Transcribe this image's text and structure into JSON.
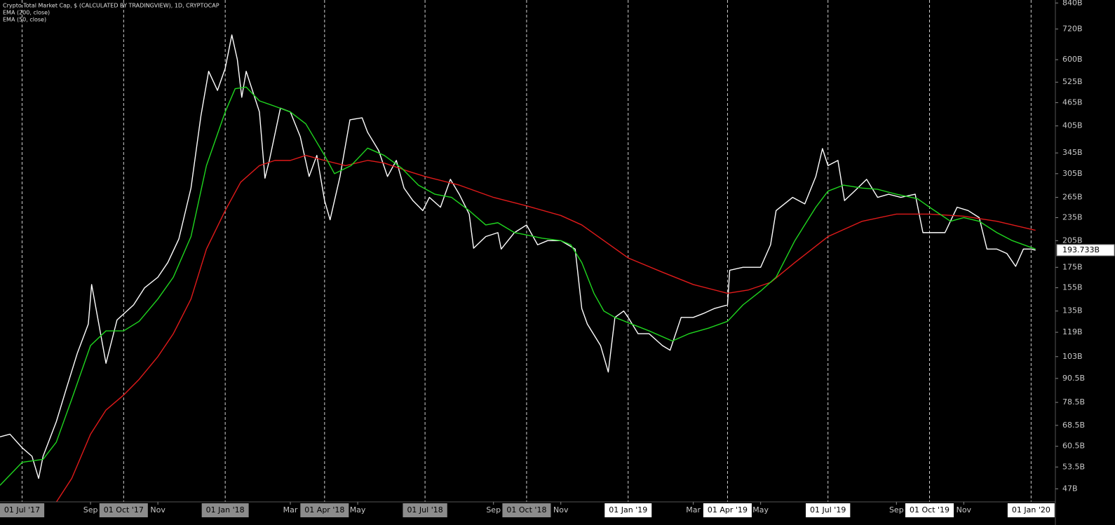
{
  "chart_data": {
    "type": "line",
    "log_scale": true,
    "background": "#000000",
    "xlim": [
      "2017-06-11",
      "2020-01-23"
    ],
    "ylim": [
      43.5,
      855
    ],
    "yticks": [
      {
        "value": 47,
        "label": "47B"
      },
      {
        "value": 53.5,
        "label": "53.5B"
      },
      {
        "value": 60.5,
        "label": "60.5B"
      },
      {
        "value": 68.5,
        "label": "68.5B"
      },
      {
        "value": 78.5,
        "label": "78.5B"
      },
      {
        "value": 90.5,
        "label": "90.5B"
      },
      {
        "value": 103,
        "label": "103B"
      },
      {
        "value": 119,
        "label": "119B"
      },
      {
        "value": 135,
        "label": "135B"
      },
      {
        "value": 155,
        "label": "155B"
      },
      {
        "value": 175,
        "label": "175B"
      },
      {
        "value": 205,
        "label": "205B"
      },
      {
        "value": 235,
        "label": "235B"
      },
      {
        "value": 265,
        "label": "265B"
      },
      {
        "value": 305,
        "label": "305B"
      },
      {
        "value": 345,
        "label": "345B"
      },
      {
        "value": 405,
        "label": "405B"
      },
      {
        "value": 465,
        "label": "465B"
      },
      {
        "value": 525,
        "label": "525B"
      },
      {
        "value": 600,
        "label": "600B"
      },
      {
        "value": 720,
        "label": "720B"
      },
      {
        "value": 840,
        "label": "840B"
      }
    ],
    "xticks": [
      {
        "value": "2017-07-01",
        "label": "01 Jul '17",
        "box": "#8c8c8c"
      },
      {
        "value": "2017-09-01",
        "label": "Sep"
      },
      {
        "value": "2017-10-01",
        "label": "01 Oct '17",
        "box": "#8c8c8c"
      },
      {
        "value": "2017-11-01",
        "label": "Nov"
      },
      {
        "value": "2018-01-01",
        "label": "01 Jan '18",
        "box": "#8c8c8c"
      },
      {
        "value": "2018-03-01",
        "label": "Mar"
      },
      {
        "value": "2018-04-01",
        "label": "01 Apr '18",
        "box": "#8c8c8c"
      },
      {
        "value": "2018-05-01",
        "label": "May"
      },
      {
        "value": "2018-07-01",
        "label": "01 Jul '18",
        "box": "#8c8c8c"
      },
      {
        "value": "2018-09-01",
        "label": "Sep"
      },
      {
        "value": "2018-10-01",
        "label": "01 Oct '18",
        "box": "#8c8c8c"
      },
      {
        "value": "2018-11-01",
        "label": "Nov"
      },
      {
        "value": "2019-01-01",
        "label": "01 Jan '19",
        "box": "#ffffff"
      },
      {
        "value": "2019-03-01",
        "label": "Mar"
      },
      {
        "value": "2019-04-01",
        "label": "01 Apr '19",
        "box": "#ffffff"
      },
      {
        "value": "2019-05-01",
        "label": "May"
      },
      {
        "value": "2019-07-01",
        "label": "01 Jul '19",
        "box": "#ffffff"
      },
      {
        "value": "2019-09-01",
        "label": "Sep"
      },
      {
        "value": "2019-10-01",
        "label": "01 Oct '19",
        "box": "#ffffff"
      },
      {
        "value": "2019-11-01",
        "label": "Nov"
      },
      {
        "value": "2020-01-01",
        "label": "01 Jan '20",
        "box": "#ffffff"
      }
    ],
    "last_label": {
      "value": 193.733,
      "label": "193.733B"
    },
    "series": [
      {
        "name": "Crypto Total Market Cap, $ (CALCULATED BY TRADINGVIEW), 1D, CRYPTOCAP",
        "color": "#ffffff",
        "x": [
          "2017-06-11",
          "2017-06-20",
          "2017-07-01",
          "2017-07-10",
          "2017-07-16",
          "2017-07-20",
          "2017-08-01",
          "2017-08-10",
          "2017-08-20",
          "2017-08-30",
          "2017-09-02",
          "2017-09-15",
          "2017-09-25",
          "2017-10-10",
          "2017-10-20",
          "2017-11-01",
          "2017-11-10",
          "2017-11-20",
          "2017-12-01",
          "2017-12-10",
          "2017-12-17",
          "2017-12-25",
          "2018-01-01",
          "2018-01-07",
          "2018-01-12",
          "2018-01-16",
          "2018-01-20",
          "2018-02-01",
          "2018-02-06",
          "2018-02-10",
          "2018-02-20",
          "2018-03-01",
          "2018-03-10",
          "2018-03-18",
          "2018-03-25",
          "2018-04-01",
          "2018-04-06",
          "2018-04-15",
          "2018-04-24",
          "2018-05-05",
          "2018-05-10",
          "2018-05-20",
          "2018-05-28",
          "2018-06-05",
          "2018-06-12",
          "2018-06-20",
          "2018-06-29",
          "2018-07-05",
          "2018-07-15",
          "2018-07-24",
          "2018-08-01",
          "2018-08-10",
          "2018-08-14",
          "2018-08-25",
          "2018-09-05",
          "2018-09-08",
          "2018-09-20",
          "2018-10-01",
          "2018-10-11",
          "2018-10-20",
          "2018-11-01",
          "2018-11-14",
          "2018-11-20",
          "2018-11-25",
          "2018-12-07",
          "2018-12-14",
          "2018-12-20",
          "2018-12-28",
          "2019-01-01",
          "2019-01-10",
          "2019-01-20",
          "2019-02-01",
          "2019-02-08",
          "2019-02-18",
          "2019-03-01",
          "2019-03-10",
          "2019-03-20",
          "2019-04-01",
          "2019-04-03",
          "2019-04-15",
          "2019-05-01",
          "2019-05-10",
          "2019-05-15",
          "2019-05-30",
          "2019-06-10",
          "2019-06-20",
          "2019-06-26",
          "2019-07-01",
          "2019-07-10",
          "2019-07-16",
          "2019-07-25",
          "2019-08-05",
          "2019-08-15",
          "2019-08-25",
          "2019-09-05",
          "2019-09-18",
          "2019-09-25",
          "2019-10-01",
          "2019-10-15",
          "2019-10-26",
          "2019-11-05",
          "2019-11-15",
          "2019-11-22",
          "2019-12-01",
          "2019-12-10",
          "2019-12-18",
          "2019-12-25",
          "2020-01-01",
          "2020-01-05"
        ],
        "values": [
          64,
          65,
          60,
          57,
          50,
          57,
          70,
          85,
          105,
          125,
          158,
          99,
          128,
          140,
          155,
          165,
          180,
          207,
          280,
          430,
          560,
          500,
          570,
          695,
          600,
          480,
          560,
          440,
          297,
          330,
          450,
          440,
          380,
          300,
          340,
          260,
          232,
          300,
          420,
          425,
          390,
          350,
          300,
          330,
          280,
          260,
          245,
          265,
          250,
          295,
          270,
          240,
          196,
          210,
          215,
          195,
          215,
          225,
          200,
          205,
          205,
          195,
          137,
          125,
          110,
          94,
          130,
          135,
          130,
          118,
          118,
          110,
          107,
          130,
          130,
          133,
          137,
          140,
          172,
          175,
          175,
          200,
          245,
          265,
          255,
          300,
          354,
          320,
          330,
          260,
          275,
          295,
          265,
          270,
          265,
          270,
          215,
          215,
          215,
          250,
          245,
          235,
          195,
          195,
          190,
          176,
          195,
          195,
          193.733
        ]
      },
      {
        "name": "EMA (200, close)",
        "color": "#e01a1a",
        "x": [
          "2017-07-31",
          "2017-08-15",
          "2017-09-01",
          "2017-09-15",
          "2017-10-01",
          "2017-10-15",
          "2017-11-01",
          "2017-11-15",
          "2017-12-01",
          "2017-12-15",
          "2018-01-01",
          "2018-01-15",
          "2018-02-01",
          "2018-02-15",
          "2018-03-01",
          "2018-03-15",
          "2018-04-01",
          "2018-04-20",
          "2018-05-10",
          "2018-05-25",
          "2018-06-15",
          "2018-07-01",
          "2018-08-01",
          "2018-09-01",
          "2018-10-01",
          "2018-11-01",
          "2018-11-20",
          "2018-12-10",
          "2019-01-01",
          "2019-02-01",
          "2019-03-01",
          "2019-04-01",
          "2019-04-20",
          "2019-05-10",
          "2019-06-01",
          "2019-07-01",
          "2019-08-01",
          "2019-09-01",
          "2019-10-01",
          "2019-11-01",
          "2019-12-01",
          "2020-01-05"
        ],
        "values": [
          43,
          50,
          65,
          75,
          82,
          90,
          103,
          118,
          145,
          195,
          245,
          290,
          320,
          330,
          330,
          340,
          330,
          320,
          330,
          325,
          310,
          300,
          285,
          265,
          252,
          238,
          225,
          205,
          185,
          170,
          158,
          150,
          153,
          160,
          180,
          210,
          230,
          240,
          240,
          237,
          230,
          218
        ]
      },
      {
        "name": "EMA (50, close)",
        "color": "#1fd61f",
        "x": [
          "2017-06-11",
          "2017-07-01",
          "2017-07-20",
          "2017-08-01",
          "2017-08-15",
          "2017-09-01",
          "2017-09-15",
          "2017-10-01",
          "2017-10-15",
          "2017-11-01",
          "2017-11-15",
          "2017-12-01",
          "2017-12-15",
          "2018-01-01",
          "2018-01-10",
          "2018-01-20",
          "2018-02-01",
          "2018-02-15",
          "2018-03-01",
          "2018-03-15",
          "2018-04-01",
          "2018-04-10",
          "2018-04-25",
          "2018-05-10",
          "2018-05-25",
          "2018-06-10",
          "2018-06-25",
          "2018-07-10",
          "2018-07-25",
          "2018-08-10",
          "2018-08-25",
          "2018-09-05",
          "2018-09-20",
          "2018-10-01",
          "2018-10-15",
          "2018-11-01",
          "2018-11-10",
          "2018-11-20",
          "2018-12-01",
          "2018-12-10",
          "2018-12-20",
          "2019-01-01",
          "2019-01-20",
          "2019-02-10",
          "2019-02-25",
          "2019-03-15",
          "2019-04-01",
          "2019-04-15",
          "2019-05-01",
          "2019-05-15",
          "2019-06-01",
          "2019-06-20",
          "2019-07-01",
          "2019-07-15",
          "2019-08-01",
          "2019-08-15",
          "2019-09-01",
          "2019-09-20",
          "2019-10-01",
          "2019-10-20",
          "2019-11-01",
          "2019-11-15",
          "2019-12-01",
          "2019-12-15",
          "2020-01-05"
        ],
        "values": [
          48,
          55,
          56,
          62,
          80,
          110,
          120,
          120,
          127,
          145,
          165,
          210,
          320,
          440,
          505,
          510,
          470,
          455,
          440,
          410,
          340,
          305,
          320,
          355,
          340,
          315,
          285,
          270,
          265,
          245,
          225,
          228,
          215,
          212,
          208,
          205,
          200,
          180,
          150,
          135,
          130,
          126,
          120,
          113,
          118,
          122,
          127,
          140,
          152,
          165,
          205,
          250,
          275,
          285,
          280,
          278,
          270,
          263,
          250,
          230,
          235,
          230,
          215,
          205,
          195
        ]
      }
    ]
  }
}
